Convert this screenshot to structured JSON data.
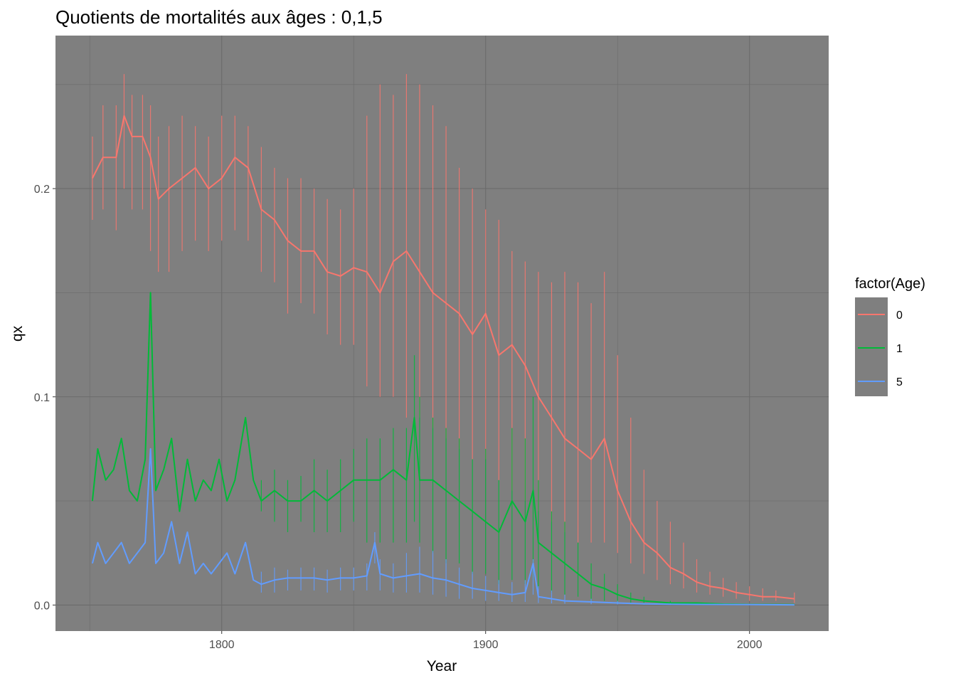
{
  "chart_data": {
    "type": "line",
    "title": "Quotients de mortalités aux âges :  0,1,5",
    "xlabel": "Year",
    "ylabel": "qx",
    "xlim": [
      1737,
      2030
    ],
    "ylim": [
      -0.0125,
      0.2735
    ],
    "x_ticks": [
      1800,
      1900,
      2000
    ],
    "x_tick_labels": [
      "1800",
      "1900",
      "2000"
    ],
    "y_ticks": [
      0.0,
      0.1,
      0.2
    ],
    "y_tick_labels": [
      "0.0",
      "0.1",
      "0.2"
    ],
    "grid": true,
    "panel_background": "#7f7f7f",
    "legend": {
      "title": "factor(Age)",
      "position": "right",
      "background": "#7f7f7f"
    },
    "series": [
      {
        "name": "0",
        "color": "#F8766D",
        "x": [
          1751,
          1755,
          1760,
          1763,
          1766,
          1770,
          1773,
          1776,
          1780,
          1785,
          1790,
          1795,
          1800,
          1805,
          1810,
          1815,
          1820,
          1825,
          1830,
          1835,
          1840,
          1845,
          1850,
          1855,
          1860,
          1865,
          1870,
          1875,
          1880,
          1885,
          1890,
          1895,
          1900,
          1905,
          1910,
          1915,
          1920,
          1925,
          1930,
          1935,
          1940,
          1945,
          1950,
          1955,
          1960,
          1965,
          1970,
          1975,
          1980,
          1985,
          1990,
          1995,
          2000,
          2005,
          2010,
          2017
        ],
        "values": [
          0.205,
          0.215,
          0.215,
          0.235,
          0.225,
          0.225,
          0.215,
          0.195,
          0.2,
          0.205,
          0.21,
          0.2,
          0.205,
          0.215,
          0.21,
          0.19,
          0.185,
          0.175,
          0.17,
          0.17,
          0.16,
          0.158,
          0.162,
          0.16,
          0.15,
          0.165,
          0.17,
          0.16,
          0.15,
          0.145,
          0.14,
          0.13,
          0.14,
          0.12,
          0.125,
          0.115,
          0.1,
          0.09,
          0.08,
          0.075,
          0.07,
          0.08,
          0.055,
          0.04,
          0.03,
          0.025,
          0.018,
          0.015,
          0.011,
          0.009,
          0.008,
          0.006,
          0.005,
          0.004,
          0.004,
          0.003
        ],
        "low": [
          0.185,
          0.19,
          0.18,
          0.2,
          0.19,
          0.19,
          0.17,
          0.16,
          0.16,
          0.17,
          0.175,
          0.17,
          0.175,
          0.18,
          0.175,
          0.16,
          0.155,
          0.14,
          0.145,
          0.14,
          0.13,
          0.125,
          0.125,
          0.105,
          0.1,
          0.1,
          0.09,
          0.09,
          0.085,
          0.08,
          0.075,
          0.07,
          0.07,
          0.06,
          0.055,
          0.05,
          0.045,
          0.04,
          0.035,
          0.03,
          0.03,
          0.03,
          0.025,
          0.02,
          0.015,
          0.012,
          0.01,
          0.008,
          0.006,
          0.005,
          0.004,
          0.003,
          0.002,
          0.002,
          0.002,
          0.001
        ],
        "high": [
          0.225,
          0.24,
          0.24,
          0.255,
          0.245,
          0.245,
          0.24,
          0.225,
          0.23,
          0.235,
          0.23,
          0.225,
          0.235,
          0.235,
          0.23,
          0.22,
          0.21,
          0.205,
          0.205,
          0.2,
          0.195,
          0.19,
          0.2,
          0.235,
          0.25,
          0.245,
          0.255,
          0.25,
          0.24,
          0.23,
          0.21,
          0.2,
          0.19,
          0.185,
          0.17,
          0.165,
          0.16,
          0.155,
          0.16,
          0.155,
          0.145,
          0.16,
          0.12,
          0.09,
          0.065,
          0.05,
          0.04,
          0.03,
          0.022,
          0.016,
          0.013,
          0.011,
          0.009,
          0.008,
          0.007,
          0.006
        ]
      },
      {
        "name": "1",
        "color": "#00BA38",
        "x": [
          1751,
          1753,
          1756,
          1759,
          1762,
          1765,
          1768,
          1771,
          1773,
          1775,
          1778,
          1781,
          1784,
          1787,
          1790,
          1793,
          1796,
          1799,
          1802,
          1805,
          1809,
          1812,
          1815,
          1820,
          1825,
          1830,
          1835,
          1840,
          1845,
          1850,
          1855,
          1860,
          1865,
          1870,
          1873,
          1875,
          1880,
          1885,
          1890,
          1895,
          1900,
          1905,
          1910,
          1915,
          1918,
          1920,
          1925,
          1930,
          1935,
          1940,
          1945,
          1950,
          1955,
          1960,
          1970,
          1980,
          1990,
          2000,
          2017
        ],
        "values": [
          0.05,
          0.075,
          0.06,
          0.065,
          0.08,
          0.055,
          0.05,
          0.07,
          0.15,
          0.055,
          0.065,
          0.08,
          0.045,
          0.07,
          0.05,
          0.06,
          0.055,
          0.07,
          0.05,
          0.06,
          0.09,
          0.06,
          0.05,
          0.055,
          0.05,
          0.05,
          0.055,
          0.05,
          0.055,
          0.06,
          0.06,
          0.06,
          0.065,
          0.06,
          0.09,
          0.06,
          0.06,
          0.055,
          0.05,
          0.045,
          0.04,
          0.035,
          0.05,
          0.04,
          0.055,
          0.03,
          0.025,
          0.02,
          0.015,
          0.01,
          0.008,
          0.005,
          0.003,
          0.002,
          0.001,
          0.001,
          0.0005,
          0.0003,
          0.0002
        ],
        "low": [
          0.05,
          0.075,
          0.06,
          0.065,
          0.08,
          0.055,
          0.05,
          0.07,
          0.15,
          0.055,
          0.065,
          0.08,
          0.045,
          0.07,
          0.05,
          0.06,
          0.055,
          0.07,
          0.05,
          0.06,
          0.09,
          0.06,
          0.045,
          0.04,
          0.035,
          0.04,
          0.035,
          0.035,
          0.035,
          0.04,
          0.03,
          0.03,
          0.03,
          0.03,
          0.04,
          0.03,
          0.025,
          0.02,
          0.02,
          0.015,
          0.015,
          0.01,
          0.012,
          0.01,
          0.012,
          0.008,
          0.006,
          0.005,
          0.004,
          0.002,
          0.002,
          0.001,
          0.001,
          0.0005,
          0.0003,
          0.0002,
          0.0001,
          0.0001,
          0.0001
        ],
        "high": [
          0.05,
          0.075,
          0.06,
          0.065,
          0.08,
          0.055,
          0.05,
          0.07,
          0.15,
          0.055,
          0.065,
          0.08,
          0.045,
          0.07,
          0.05,
          0.06,
          0.055,
          0.07,
          0.05,
          0.06,
          0.09,
          0.06,
          0.06,
          0.065,
          0.06,
          0.062,
          0.07,
          0.065,
          0.07,
          0.075,
          0.08,
          0.08,
          0.085,
          0.085,
          0.12,
          0.1,
          0.09,
          0.085,
          0.08,
          0.07,
          0.075,
          0.06,
          0.085,
          0.08,
          0.1,
          0.06,
          0.045,
          0.04,
          0.03,
          0.02,
          0.015,
          0.01,
          0.006,
          0.004,
          0.002,
          0.001,
          0.0008,
          0.0005,
          0.0003
        ]
      },
      {
        "name": "5",
        "color": "#619CFF",
        "x": [
          1751,
          1753,
          1756,
          1759,
          1762,
          1765,
          1768,
          1771,
          1773,
          1775,
          1778,
          1781,
          1784,
          1787,
          1790,
          1793,
          1796,
          1799,
          1802,
          1805,
          1809,
          1812,
          1815,
          1820,
          1825,
          1830,
          1835,
          1840,
          1845,
          1850,
          1855,
          1858,
          1860,
          1865,
          1870,
          1875,
          1880,
          1885,
          1890,
          1895,
          1900,
          1905,
          1910,
          1915,
          1918,
          1920,
          1925,
          1930,
          1940,
          1950,
          1960,
          1970,
          1980,
          2000,
          2017
        ],
        "values": [
          0.02,
          0.03,
          0.02,
          0.025,
          0.03,
          0.02,
          0.025,
          0.03,
          0.075,
          0.02,
          0.025,
          0.04,
          0.02,
          0.035,
          0.015,
          0.02,
          0.015,
          0.02,
          0.025,
          0.015,
          0.03,
          0.012,
          0.01,
          0.012,
          0.013,
          0.013,
          0.013,
          0.012,
          0.013,
          0.013,
          0.014,
          0.03,
          0.015,
          0.013,
          0.014,
          0.015,
          0.013,
          0.012,
          0.01,
          0.008,
          0.007,
          0.006,
          0.005,
          0.006,
          0.02,
          0.004,
          0.003,
          0.002,
          0.0015,
          0.001,
          0.0006,
          0.0004,
          0.0003,
          0.0002,
          0.0001
        ],
        "low": [
          0.02,
          0.03,
          0.02,
          0.025,
          0.03,
          0.02,
          0.025,
          0.03,
          0.075,
          0.02,
          0.025,
          0.04,
          0.02,
          0.035,
          0.015,
          0.02,
          0.015,
          0.02,
          0.025,
          0.015,
          0.03,
          0.012,
          0.006,
          0.006,
          0.007,
          0.007,
          0.007,
          0.006,
          0.007,
          0.007,
          0.007,
          0.02,
          0.007,
          0.006,
          0.006,
          0.006,
          0.005,
          0.004,
          0.003,
          0.003,
          0.002,
          0.002,
          0.0015,
          0.0015,
          0.005,
          0.001,
          0.0008,
          0.0006,
          0.0004,
          0.0003,
          0.0002,
          0.0001,
          0.0001,
          0.0001,
          0.0001
        ],
        "high": [
          0.02,
          0.03,
          0.02,
          0.025,
          0.03,
          0.02,
          0.025,
          0.03,
          0.075,
          0.02,
          0.025,
          0.04,
          0.02,
          0.035,
          0.015,
          0.02,
          0.015,
          0.02,
          0.025,
          0.015,
          0.03,
          0.012,
          0.016,
          0.018,
          0.017,
          0.018,
          0.018,
          0.017,
          0.018,
          0.018,
          0.02,
          0.035,
          0.022,
          0.02,
          0.025,
          0.028,
          0.026,
          0.022,
          0.018,
          0.016,
          0.014,
          0.012,
          0.011,
          0.012,
          0.022,
          0.009,
          0.007,
          0.005,
          0.003,
          0.002,
          0.001,
          0.0008,
          0.0005,
          0.0003,
          0.0002
        ]
      }
    ]
  }
}
